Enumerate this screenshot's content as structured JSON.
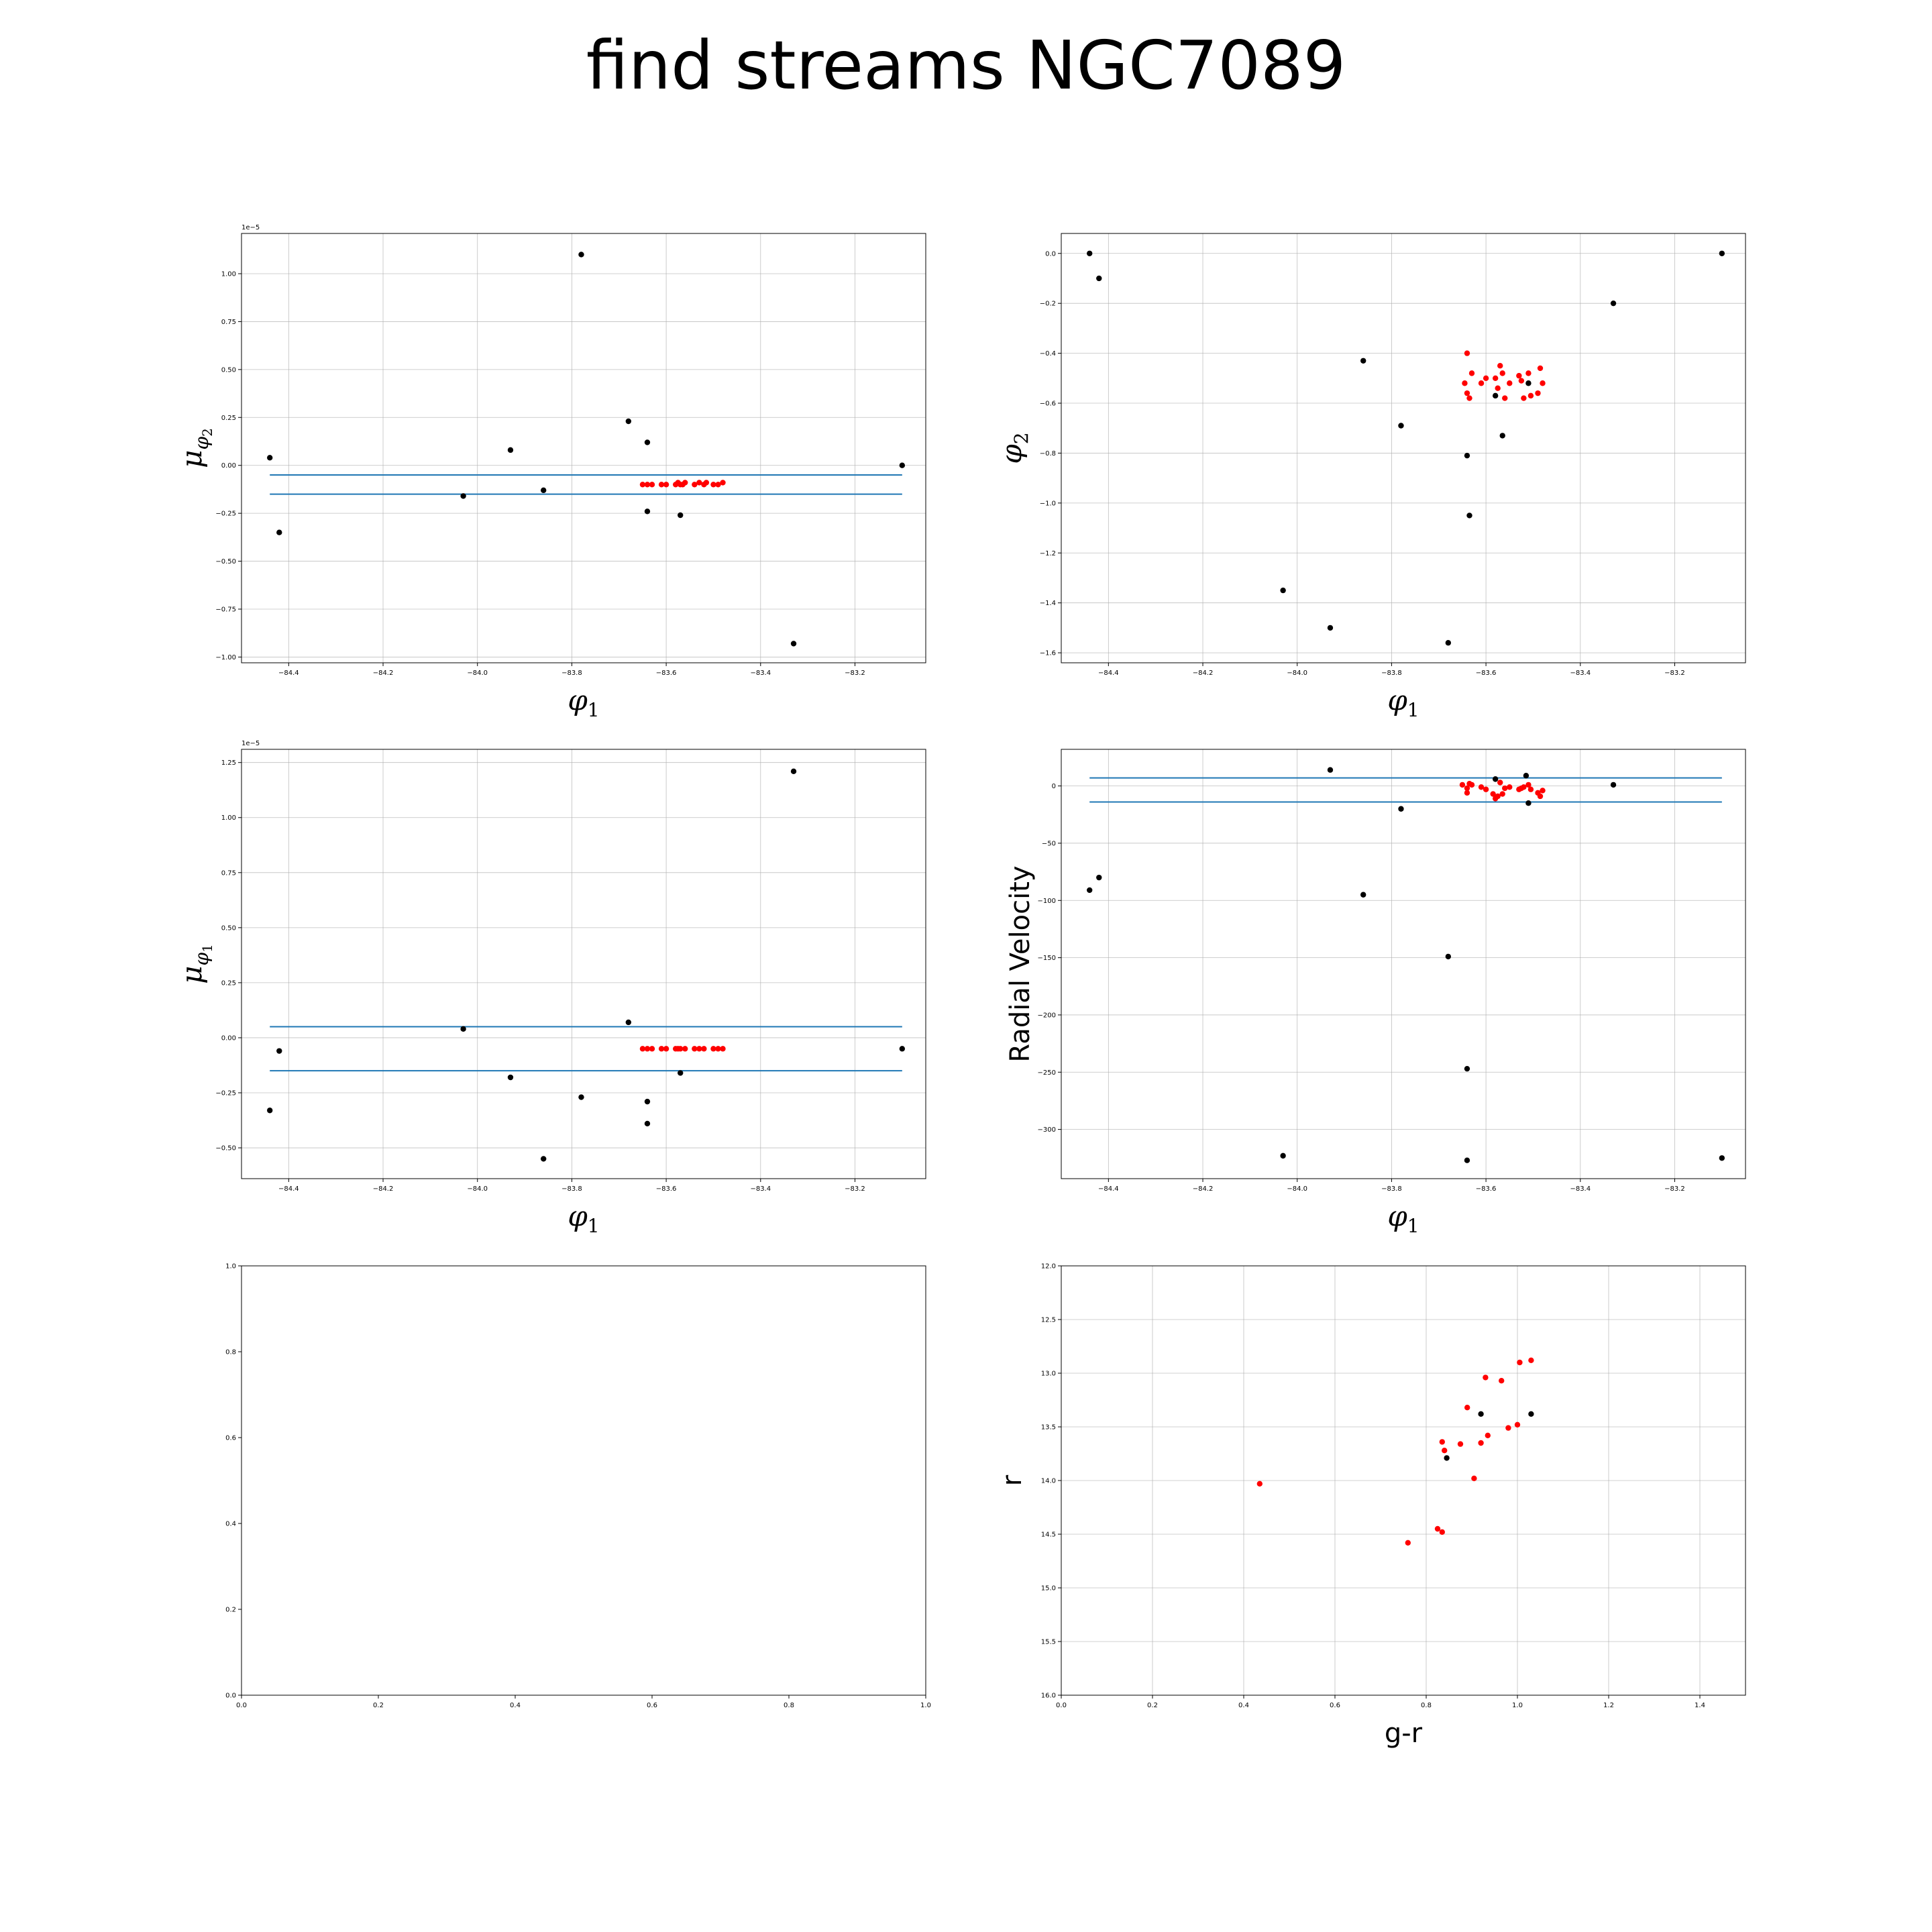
{
  "title": "find streams NGC7089",
  "colors": {
    "member": "#ff0000",
    "nonmember": "#000000",
    "cut_line": "#1f77b4",
    "grid": "#b0b0b0"
  },
  "chart_data": [
    {
      "id": "pm2",
      "type": "scatter",
      "xlabel": "φ1",
      "ylabel": "μφ2",
      "offset_text": "1e−5",
      "xlim": [
        -84.5,
        -83.05
      ],
      "ylim": [
        -1.03,
        1.21
      ],
      "xticks": [
        -84.4,
        -84.2,
        -84.0,
        -83.8,
        -83.6,
        -83.4,
        -83.2
      ],
      "yticks": [
        -1.0,
        -0.75,
        -0.5,
        -0.25,
        0.0,
        0.25,
        0.5,
        0.75,
        1.0
      ],
      "ytick_labels": [
        "−1.00",
        "−0.75",
        "−0.50",
        "−0.25",
        "0.00",
        "0.25",
        "0.50",
        "0.75",
        "1.00"
      ],
      "xtick_labels": [
        "−84.4",
        "−84.2",
        "−84.0",
        "−83.8",
        "−83.6",
        "−83.4",
        "−83.2"
      ],
      "grid": true,
      "hlines": [
        {
          "y": -0.05,
          "xmin": -84.44,
          "xmax": -83.1
        },
        {
          "y": -0.15,
          "xmin": -84.44,
          "xmax": -83.1
        }
      ],
      "series": [
        {
          "color": "#000000",
          "points": [
            [
              -84.44,
              0.04
            ],
            [
              -84.42,
              -0.35
            ],
            [
              -84.03,
              -0.16
            ],
            [
              -83.93,
              0.08
            ],
            [
              -83.86,
              -0.13
            ],
            [
              -83.78,
              1.1
            ],
            [
              -83.68,
              0.23
            ],
            [
              -83.64,
              0.12
            ],
            [
              -83.64,
              -0.24
            ],
            [
              -83.57,
              -0.26
            ],
            [
              -83.33,
              -0.93
            ],
            [
              -83.1,
              0.0
            ]
          ]
        },
        {
          "color": "#ff0000",
          "points": [
            [
              -83.65,
              -0.1
            ],
            [
              -83.64,
              -0.1
            ],
            [
              -83.63,
              -0.1
            ],
            [
              -83.61,
              -0.1
            ],
            [
              -83.6,
              -0.1
            ],
            [
              -83.58,
              -0.1
            ],
            [
              -83.575,
              -0.09
            ],
            [
              -83.57,
              -0.1
            ],
            [
              -83.565,
              -0.1
            ],
            [
              -83.56,
              -0.09
            ],
            [
              -83.54,
              -0.1
            ],
            [
              -83.53,
              -0.09
            ],
            [
              -83.52,
              -0.1
            ],
            [
              -83.515,
              -0.09
            ],
            [
              -83.5,
              -0.1
            ],
            [
              -83.49,
              -0.1
            ],
            [
              -83.48,
              -0.09
            ]
          ]
        }
      ]
    },
    {
      "id": "phi2",
      "type": "scatter",
      "xlabel": "φ1",
      "ylabel": "φ2",
      "xlim": [
        -84.5,
        -83.05
      ],
      "ylim": [
        -1.64,
        0.08
      ],
      "xticks": [
        -84.4,
        -84.2,
        -84.0,
        -83.8,
        -83.6,
        -83.4,
        -83.2
      ],
      "xtick_labels": [
        "−84.4",
        "−84.2",
        "−84.0",
        "−83.8",
        "−83.6",
        "−83.4",
        "−83.2"
      ],
      "yticks": [
        -1.6,
        -1.4,
        -1.2,
        -1.0,
        -0.8,
        -0.6,
        -0.4,
        -0.2,
        0.0
      ],
      "ytick_labels": [
        "−1.6",
        "−1.4",
        "−1.2",
        "−1.0",
        "−0.8",
        "−0.6",
        "−0.4",
        "−0.2",
        "0.0"
      ],
      "grid": true,
      "series": [
        {
          "color": "#000000",
          "points": [
            [
              -84.44,
              0.0
            ],
            [
              -84.42,
              -0.1
            ],
            [
              -84.03,
              -1.35
            ],
            [
              -83.93,
              -1.5
            ],
            [
              -83.86,
              -0.43
            ],
            [
              -83.78,
              -0.69
            ],
            [
              -83.68,
              -1.56
            ],
            [
              -83.64,
              -0.81
            ],
            [
              -83.635,
              -1.05
            ],
            [
              -83.565,
              -0.73
            ],
            [
              -83.58,
              -0.57
            ],
            [
              -83.51,
              -0.52
            ],
            [
              -83.33,
              -0.2
            ],
            [
              -83.1,
              0.0
            ]
          ]
        },
        {
          "color": "#ff0000",
          "points": [
            [
              -83.64,
              -0.4
            ],
            [
              -83.63,
              -0.48
            ],
            [
              -83.645,
              -0.52
            ],
            [
              -83.64,
              -0.56
            ],
            [
              -83.635,
              -0.58
            ],
            [
              -83.61,
              -0.52
            ],
            [
              -83.6,
              -0.5
            ],
            [
              -83.58,
              -0.5
            ],
            [
              -83.575,
              -0.54
            ],
            [
              -83.57,
              -0.45
            ],
            [
              -83.565,
              -0.48
            ],
            [
              -83.56,
              -0.58
            ],
            [
              -83.55,
              -0.52
            ],
            [
              -83.53,
              -0.49
            ],
            [
              -83.525,
              -0.51
            ],
            [
              -83.52,
              -0.58
            ],
            [
              -83.51,
              -0.48
            ],
            [
              -83.505,
              -0.57
            ],
            [
              -83.49,
              -0.56
            ],
            [
              -83.485,
              -0.46
            ],
            [
              -83.48,
              -0.52
            ]
          ]
        }
      ]
    },
    {
      "id": "pm1",
      "type": "scatter",
      "xlabel": "φ1",
      "ylabel": "μφ1",
      "offset_text": "1e−5",
      "xlim": [
        -84.5,
        -83.05
      ],
      "ylim": [
        -0.64,
        1.31
      ],
      "xticks": [
        -84.4,
        -84.2,
        -84.0,
        -83.8,
        -83.6,
        -83.4,
        -83.2
      ],
      "xtick_labels": [
        "−84.4",
        "−84.2",
        "−84.0",
        "−83.8",
        "−83.6",
        "−83.4",
        "−83.2"
      ],
      "yticks": [
        -0.5,
        -0.25,
        0.0,
        0.25,
        0.5,
        0.75,
        1.0,
        1.25
      ],
      "ytick_labels": [
        "−0.50",
        "−0.25",
        "0.00",
        "0.25",
        "0.50",
        "0.75",
        "1.00",
        "1.25"
      ],
      "grid": true,
      "hlines": [
        {
          "y": 0.05,
          "xmin": -84.44,
          "xmax": -83.1
        },
        {
          "y": -0.15,
          "xmin": -84.44,
          "xmax": -83.1
        }
      ],
      "series": [
        {
          "color": "#000000",
          "points": [
            [
              -84.44,
              -0.33
            ],
            [
              -84.42,
              -0.06
            ],
            [
              -84.03,
              0.04
            ],
            [
              -83.93,
              -0.18
            ],
            [
              -83.86,
              -0.55
            ],
            [
              -83.78,
              -0.27
            ],
            [
              -83.68,
              0.07
            ],
            [
              -83.64,
              -0.29
            ],
            [
              -83.64,
              -0.39
            ],
            [
              -83.57,
              -0.16
            ],
            [
              -83.33,
              1.21
            ],
            [
              -83.1,
              -0.05
            ]
          ]
        },
        {
          "color": "#ff0000",
          "points": [
            [
              -83.65,
              -0.05
            ],
            [
              -83.64,
              -0.05
            ],
            [
              -83.63,
              -0.05
            ],
            [
              -83.61,
              -0.05
            ],
            [
              -83.6,
              -0.05
            ],
            [
              -83.58,
              -0.05
            ],
            [
              -83.575,
              -0.05
            ],
            [
              -83.57,
              -0.05
            ],
            [
              -83.56,
              -0.05
            ],
            [
              -83.54,
              -0.05
            ],
            [
              -83.53,
              -0.05
            ],
            [
              -83.52,
              -0.05
            ],
            [
              -83.5,
              -0.05
            ],
            [
              -83.49,
              -0.05
            ],
            [
              -83.48,
              -0.05
            ]
          ]
        }
      ]
    },
    {
      "id": "rv",
      "type": "scatter",
      "xlabel": "φ1",
      "ylabel": "Radial Velocity",
      "xlim": [
        -84.5,
        -83.05
      ],
      "ylim": [
        -343,
        32
      ],
      "xticks": [
        -84.4,
        -84.2,
        -84.0,
        -83.8,
        -83.6,
        -83.4,
        -83.2
      ],
      "xtick_labels": [
        "−84.4",
        "−84.2",
        "−84.0",
        "−83.8",
        "−83.6",
        "−83.4",
        "−83.2"
      ],
      "yticks": [
        -300,
        -250,
        -200,
        -150,
        -100,
        -50,
        0
      ],
      "ytick_labels": [
        "−300",
        "−250",
        "−200",
        "−150",
        "−100",
        "−50",
        "0"
      ],
      "grid": true,
      "hlines": [
        {
          "y": 7,
          "xmin": -84.44,
          "xmax": -83.1
        },
        {
          "y": -14,
          "xmin": -84.44,
          "xmax": -83.1
        }
      ],
      "series": [
        {
          "color": "#000000",
          "points": [
            [
              -84.44,
              -91
            ],
            [
              -84.42,
              -80
            ],
            [
              -84.03,
              -323
            ],
            [
              -83.93,
              14
            ],
            [
              -83.86,
              -95
            ],
            [
              -83.78,
              -20
            ],
            [
              -83.68,
              -149
            ],
            [
              -83.64,
              -247
            ],
            [
              -83.64,
              -327
            ],
            [
              -83.58,
              6
            ],
            [
              -83.515,
              9
            ],
            [
              -83.51,
              -15
            ],
            [
              -83.33,
              1
            ],
            [
              -83.1,
              -325
            ]
          ]
        },
        {
          "color": "#ff0000",
          "points": [
            [
              -83.65,
              1
            ],
            [
              -83.64,
              -2
            ],
            [
              -83.64,
              -6
            ],
            [
              -83.635,
              2
            ],
            [
              -83.63,
              1
            ],
            [
              -83.61,
              -1
            ],
            [
              -83.6,
              -3
            ],
            [
              -83.585,
              -7
            ],
            [
              -83.58,
              -11
            ],
            [
              -83.575,
              -9
            ],
            [
              -83.57,
              3
            ],
            [
              -83.565,
              -7
            ],
            [
              -83.56,
              -2
            ],
            [
              -83.55,
              -1
            ],
            [
              -83.53,
              -3
            ],
            [
              -83.525,
              -2
            ],
            [
              -83.52,
              -1
            ],
            [
              -83.51,
              1
            ],
            [
              -83.505,
              -3
            ],
            [
              -83.49,
              -6
            ],
            [
              -83.485,
              -9
            ],
            [
              -83.48,
              -4
            ]
          ]
        }
      ]
    },
    {
      "id": "empty",
      "type": "scatter",
      "xlim": [
        0,
        1
      ],
      "ylim": [
        0,
        1
      ],
      "xticks": [
        0.0,
        0.2,
        0.4,
        0.6,
        0.8,
        1.0
      ],
      "xtick_labels": [
        "0.0",
        "0.2",
        "0.4",
        "0.6",
        "0.8",
        "1.0"
      ],
      "yticks": [
        0.0,
        0.2,
        0.4,
        0.6,
        0.8,
        1.0
      ],
      "ytick_labels": [
        "0.0",
        "0.2",
        "0.4",
        "0.6",
        "0.8",
        "1.0"
      ],
      "grid": false,
      "series": []
    },
    {
      "id": "cmd",
      "type": "scatter",
      "xlabel": "g-r",
      "ylabel": "r",
      "xlim": [
        0.0,
        1.5
      ],
      "ylim": [
        16.0,
        12.0
      ],
      "inverted_y": true,
      "xticks": [
        0.0,
        0.2,
        0.4,
        0.6,
        0.8,
        1.0,
        1.2,
        1.4
      ],
      "xtick_labels": [
        "0.0",
        "0.2",
        "0.4",
        "0.6",
        "0.8",
        "1.0",
        "1.2",
        "1.4"
      ],
      "yticks": [
        12.0,
        12.5,
        13.0,
        13.5,
        14.0,
        14.5,
        15.0,
        15.5,
        16.0
      ],
      "ytick_labels": [
        "12.0",
        "12.5",
        "13.0",
        "13.5",
        "14.0",
        "14.5",
        "15.0",
        "15.5",
        "16.0"
      ],
      "grid": true,
      "series": [
        {
          "color": "#000000",
          "points": [
            [
              0.845,
              13.79
            ],
            [
              0.92,
              13.38
            ],
            [
              1.03,
              13.38
            ]
          ]
        },
        {
          "color": "#ff0000",
          "points": [
            [
              0.435,
              14.03
            ],
            [
              0.76,
              14.58
            ],
            [
              0.825,
              14.45
            ],
            [
              0.835,
              14.48
            ],
            [
              0.835,
              13.64
            ],
            [
              0.84,
              13.72
            ],
            [
              0.875,
              13.66
            ],
            [
              0.89,
              13.32
            ],
            [
              0.905,
              13.98
            ],
            [
              0.92,
              13.65
            ],
            [
              0.93,
              13.04
            ],
            [
              0.935,
              13.58
            ],
            [
              0.965,
              13.07
            ],
            [
              0.98,
              13.51
            ],
            [
              1.0,
              13.48
            ],
            [
              1.005,
              12.9
            ],
            [
              1.03,
              12.88
            ]
          ]
        }
      ]
    }
  ]
}
